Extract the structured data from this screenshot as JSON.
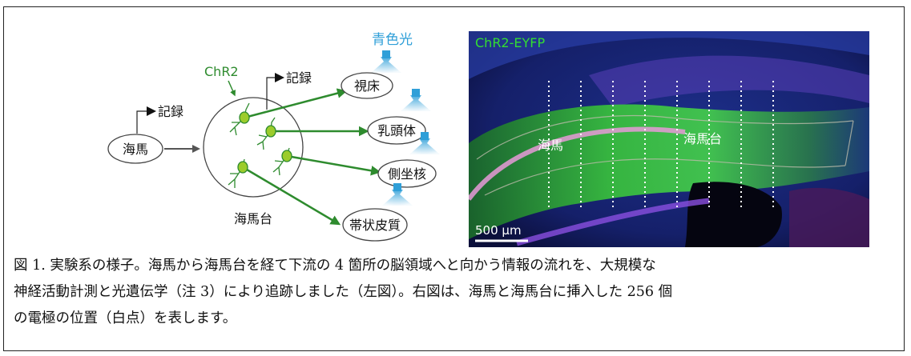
{
  "left_diagram": {
    "hippocampus_label": "海馬",
    "record_label_1": "記録",
    "record_label_2": "記録",
    "chr2_label": "ChR2",
    "subiculum_label": "海馬台",
    "blue_light_label": "青色光",
    "targets": [
      "視床",
      "乳頭体",
      "側坐核",
      "帯状皮質"
    ]
  },
  "right_image": {
    "stain_label": "ChR2-EYFP",
    "hippocampus_label": "海馬",
    "subiculum_label": "海馬台",
    "scale_bar_label": "500 µm"
  },
  "caption": {
    "line1": "図 1. 実験系の様子。海馬から海馬台を経て下流の 4 箇所の脳領域へと向かう情報の流れを、大規模な",
    "line2": "神経活動計測と光遺伝学（注 3）により追跡しました（左図）。右図は、海馬と海馬台に挿入した 256 個",
    "line3": "の電極の位置（白点）を表します。"
  },
  "colors": {
    "green": "#2e8b2e",
    "blue_light": "#2f9fd8",
    "neuron_fill": "#9ccc2c",
    "stain": "#33dd33"
  }
}
